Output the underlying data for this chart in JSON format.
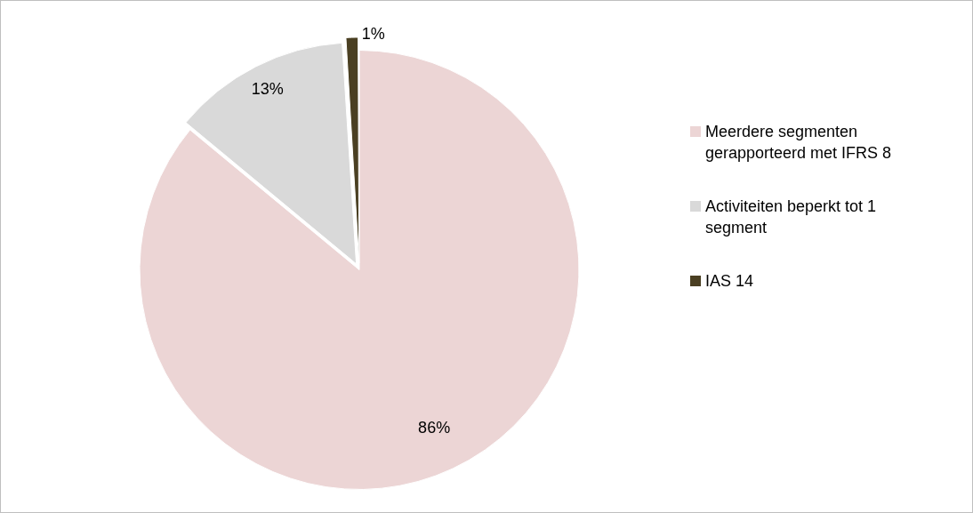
{
  "chart_data": {
    "type": "pie",
    "categories": [
      "Meerdere segmenten gerapporteerd met IFRS 8",
      "Activiteiten beperkt tot 1 segment",
      "IAS 14"
    ],
    "values": [
      86,
      13,
      1
    ],
    "colors": [
      "#ecd5d5",
      "#d9d9d9",
      "#4a3f22"
    ],
    "value_labels": [
      "86%",
      "13%",
      "1%"
    ],
    "legend": "right"
  }
}
